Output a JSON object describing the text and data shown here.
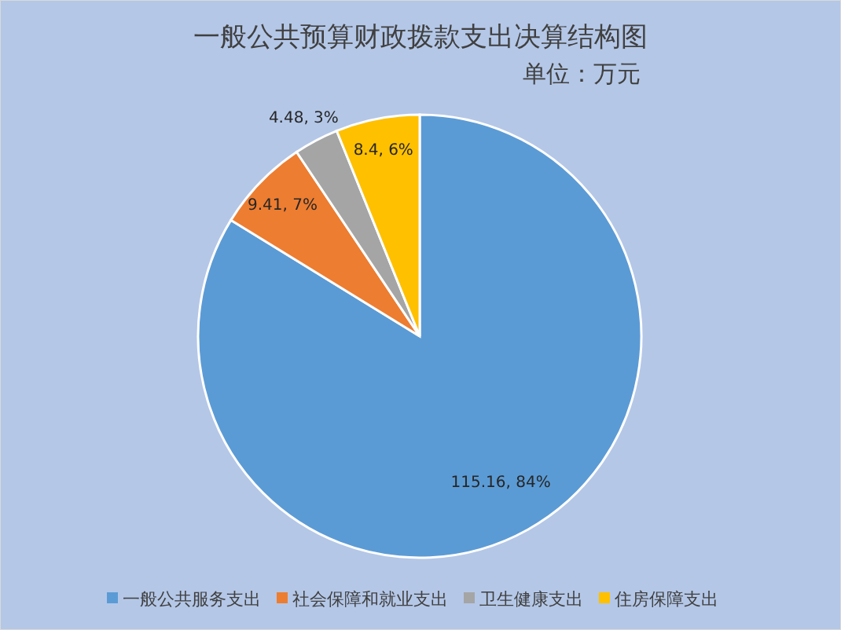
{
  "chart_data": {
    "type": "pie",
    "title": "一般公共预算财政拨款支出决算结构图",
    "subtitle": "单位：万元",
    "categories": [
      "一般公共服务支出",
      "社会保障和就业支出",
      "卫生健康支出",
      "住房保障支出"
    ],
    "values": [
      115.16,
      9.41,
      4.48,
      8.4
    ],
    "colors": [
      "#5b9bd5",
      "#ed7d31",
      "#a5a5a5",
      "#ffc000"
    ],
    "value_labels": [
      "115.16, 84%",
      "9.41, 7%",
      "4.48, 3%",
      "8.4, 6%"
    ],
    "legend": "bottom"
  }
}
